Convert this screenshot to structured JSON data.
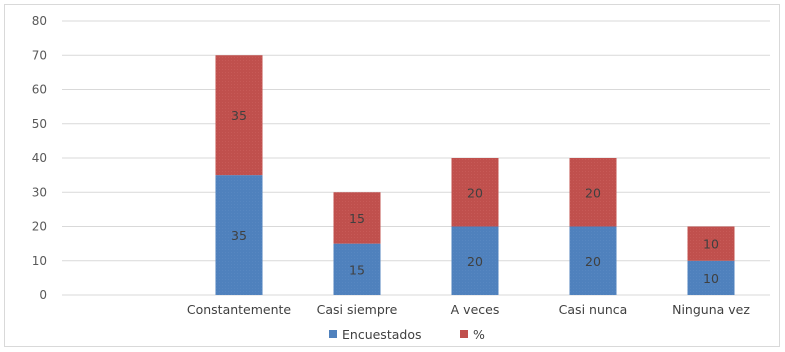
{
  "chart_data": {
    "type": "bar",
    "stacked": true,
    "categories": [
      "",
      "Constantemente",
      "Casi siempre",
      "A veces",
      "Casi nunca",
      "Ninguna vez"
    ],
    "series": [
      {
        "name": "Encuestados",
        "color": "#4f81bd",
        "values": [
          null,
          35,
          15,
          20,
          20,
          10
        ]
      },
      {
        "name": "%",
        "color": "#c0504d",
        "values": [
          null,
          35,
          15,
          20,
          20,
          10
        ]
      }
    ],
    "ylim": [
      0,
      80
    ],
    "yticks": [
      "0",
      "10",
      "20",
      "30",
      "40",
      "50",
      "60",
      "70",
      "80"
    ],
    "grid": true,
    "legend": "bottom",
    "title": "",
    "xlabel": "",
    "ylabel": ""
  }
}
